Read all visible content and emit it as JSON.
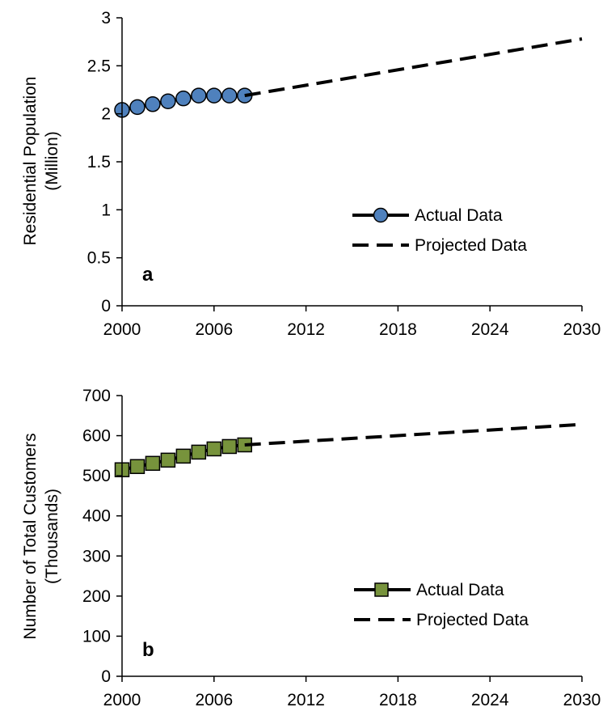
{
  "chart_data": [
    {
      "type": "line",
      "panel_label": "a",
      "ylabel": "Residential Population",
      "ylabel2": "(Million)",
      "xlim": [
        2000,
        2030
      ],
      "ylim": [
        0,
        3
      ],
      "xticks": [
        2000,
        2006,
        2012,
        2018,
        2024,
        2030
      ],
      "yticks": [
        0,
        0.5,
        1,
        1.5,
        2,
        2.5,
        3
      ],
      "ytick_labels": [
        "0",
        "0.5",
        "1",
        "1.5",
        "2",
        "2.5",
        "3"
      ],
      "grid": false,
      "legend_position": "right",
      "marker": "circle",
      "marker_color": "#4F81BD",
      "series": [
        {
          "name": "Actual Data",
          "style": "solid-marker",
          "x": [
            2000,
            2001,
            2002,
            2003,
            2004,
            2005,
            2006,
            2007,
            2008
          ],
          "y": [
            2.04,
            2.07,
            2.1,
            2.13,
            2.16,
            2.19,
            2.19,
            2.19,
            2.19
          ]
        },
        {
          "name": "Projected Data",
          "style": "dashed",
          "x": [
            2008,
            2030
          ],
          "y": [
            2.19,
            2.78
          ]
        }
      ]
    },
    {
      "type": "line",
      "panel_label": "b",
      "ylabel": "Number of Total Customers",
      "ylabel2": "(Thousands)",
      "xlim": [
        2000,
        2030
      ],
      "ylim": [
        0,
        700
      ],
      "xticks": [
        2000,
        2006,
        2012,
        2018,
        2024,
        2030
      ],
      "yticks": [
        0,
        100,
        200,
        300,
        400,
        500,
        600,
        700
      ],
      "ytick_labels": [
        "0",
        "100",
        "200",
        "300",
        "400",
        "500",
        "600",
        "700"
      ],
      "grid": false,
      "legend_position": "right",
      "marker": "square",
      "marker_color": "#77933C",
      "series": [
        {
          "name": "Actual Data",
          "style": "solid-marker",
          "x": [
            2000,
            2001,
            2002,
            2003,
            2004,
            2005,
            2006,
            2007,
            2008
          ],
          "y": [
            515,
            523,
            531,
            539,
            549,
            559,
            567,
            573,
            577
          ]
        },
        {
          "name": "Projected Data",
          "style": "dashed",
          "x": [
            2008,
            2030
          ],
          "y": [
            577,
            628
          ]
        }
      ]
    }
  ]
}
